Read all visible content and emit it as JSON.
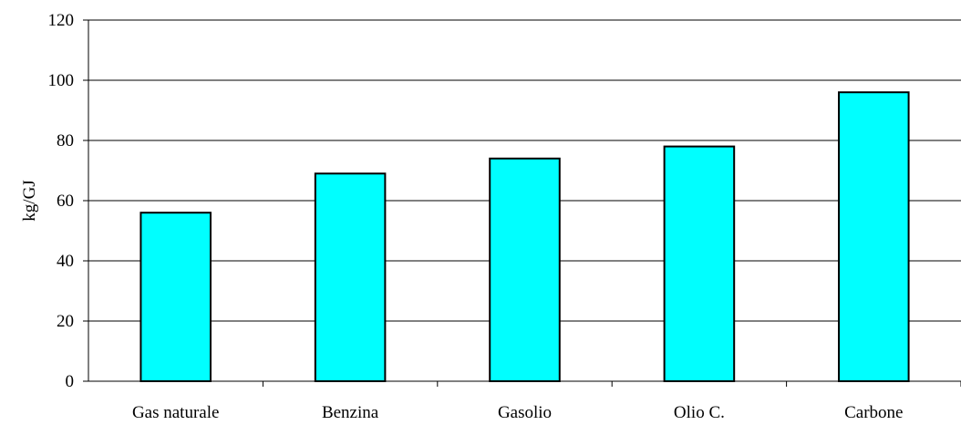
{
  "chart_data": {
    "type": "bar",
    "title": "",
    "xlabel": "",
    "ylabel": "kg/GJ",
    "categories": [
      "Gas naturale",
      "Benzina",
      "Gasolio",
      "Olio C.",
      "Carbone"
    ],
    "series": [
      {
        "values": [
          56,
          69,
          74,
          78,
          96
        ]
      }
    ],
    "ylim": [
      0,
      120
    ],
    "yticks": [
      "0",
      "20",
      "40",
      "60",
      "80",
      "100",
      "120"
    ],
    "grid": true,
    "legend": "none",
    "colors": {
      "bar_fill": "#00FFFF",
      "bar_stroke": "#000000",
      "grid": "#000000",
      "background": "#FFFFFF"
    }
  }
}
